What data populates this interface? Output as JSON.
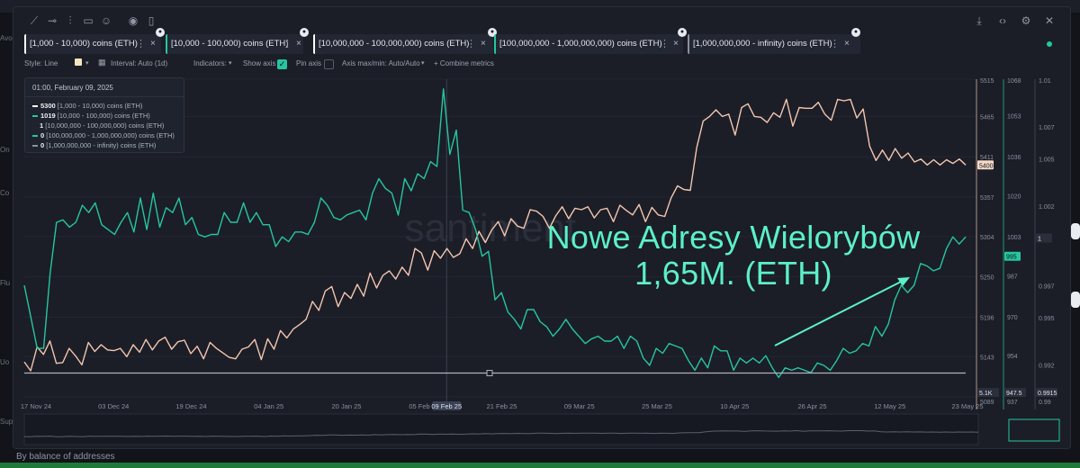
{
  "page": {
    "footer_text": "By balance of addresses",
    "left_rail_labels": [
      "Avo",
      "On",
      "Co",
      "Flu",
      "Uo",
      "Sup"
    ]
  },
  "toolbar": {
    "left_icons": [
      "line-tool-icon",
      "ray-tool-icon",
      "vertical-line-icon",
      "note-icon",
      "emoji-icon",
      "eye-icon",
      "trash-icon"
    ],
    "right_icons": [
      "download-icon",
      "embed-icon",
      "gear-icon",
      "close-icon"
    ]
  },
  "tabs": [
    {
      "label": "[1,000 - 10,000) coins (ETH)",
      "color": "#ffffff"
    },
    {
      "label": "[10,000 - 100,000) coins (ETH)",
      "color": "#26c6a0"
    },
    {
      "label": "[10,000,000 - 100,000,000) coins (ETH)",
      "color": "#ffffff"
    },
    {
      "label": "[100,000,000 - 1,000,000,000) coins (ETH)",
      "color": "#26c6a0"
    },
    {
      "label": "[1,000,000,000 - infinity) coins (ETH)",
      "color": "#8a90a0"
    }
  ],
  "settings": {
    "style": "Style: Line",
    "interval": "Interval: Auto (1d)",
    "indicators": "Indicators:",
    "show_axis": "Show axis",
    "pin_axis": "Pin axis",
    "axis_minmax": "Axis max/min: Auto/Auto",
    "combine": "+ Combine metrics"
  },
  "legend": {
    "date": "01:00, February 09, 2025",
    "rows": [
      {
        "value": "5300",
        "label": "[1,000 - 10,000) coins (ETH)",
        "color": "#ffffff"
      },
      {
        "value": "1019",
        "label": "[10,000 - 100,000) coins (ETH)",
        "color": "#26c6a0"
      },
      {
        "value": "1",
        "label": "[10,000,000 - 100,000,000) coins (ETH)",
        "color": "#ffffff"
      },
      {
        "value": "0",
        "label": "[100,000,000 - 1,000,000,000) coins (ETH)",
        "color": "#26c6a0"
      },
      {
        "value": "0",
        "label": "[1,000,000,000 - infinity) coins (ETH)",
        "color": "#8a90a0"
      }
    ]
  },
  "annotation": {
    "line1": "Nowe Adresy Wielorybów",
    "line2": "1,65M. (ETH)",
    "color": "#5cf0c8"
  },
  "watermark": "santiment",
  "chart_data": {
    "type": "line",
    "x_labels": [
      "17 Nov 24",
      "03 Dec 24",
      "19 Dec 24",
      "04 Jan 25",
      "20 Jan 25",
      "05 Feb 25",
      "21 Feb 25",
      "09 Mar 25",
      "25 Mar 25",
      "10 Apr 25",
      "26 Apr 25",
      "12 May 25",
      "23 May 25"
    ],
    "crosshair_label": "09 Feb 25",
    "axes": [
      {
        "name": "axis-1000-10000",
        "ticks": [
          5515,
          5465,
          5411,
          5357,
          5304,
          5250,
          5196,
          5143,
          5089
        ],
        "current": 5400,
        "min_label": "5.1K",
        "ylim": [
          5089,
          5515
        ]
      },
      {
        "name": "axis-10000-100000",
        "ticks": [
          1068,
          1053,
          1036,
          1020,
          1003,
          987,
          970,
          954,
          937
        ],
        "current": 995,
        "min_label": "947.5",
        "ylim": [
          937,
          1068
        ]
      },
      {
        "name": "axis-10000000-100000000",
        "ticks": [
          1.01,
          1.007,
          1.005,
          1.002,
          1,
          0.997,
          0.995,
          0.992,
          0.99
        ],
        "current": 1,
        "min_label": "0.9915",
        "ylim": [
          0.99,
          1.01
        ]
      }
    ],
    "series": [
      {
        "name": "[1,000 - 10,000) coins (ETH)",
        "color": "#f4c6b0",
        "values": [
          5136,
          5124,
          5156,
          5146,
          5164,
          5134,
          5135,
          5154,
          5144,
          5132,
          5162,
          5150,
          5159,
          5152,
          5151,
          5154,
          5143,
          5159,
          5149,
          5166,
          5152,
          5164,
          5169,
          5153,
          5163,
          5165,
          5147,
          5157,
          5140,
          5162,
          5154,
          5148,
          5142,
          5140,
          5153,
          5156,
          5166,
          5139,
          5167,
          5153,
          5178,
          5168,
          5180,
          5186,
          5193,
          5217,
          5205,
          5231,
          5237,
          5210,
          5229,
          5221,
          5240,
          5224,
          5255,
          5235,
          5252,
          5258,
          5247,
          5263,
          5252,
          5288,
          5282,
          5259,
          5285,
          5275,
          5288,
          5276,
          5281,
          5301,
          5288,
          5311,
          5296,
          5313,
          5324,
          5305,
          5328,
          5318,
          5315,
          5340,
          5338,
          5331,
          5315,
          5332,
          5344,
          5328,
          5342,
          5340,
          5344,
          5329,
          5340,
          5342,
          5324,
          5346,
          5339,
          5333,
          5347,
          5324,
          5343,
          5333,
          5331,
          5356,
          5372,
          5367,
          5366,
          5423,
          5459,
          5465,
          5474,
          5465,
          5468,
          5440,
          5477,
          5482,
          5465,
          5464,
          5457,
          5470,
          5464,
          5488,
          5452,
          5477,
          5476,
          5476,
          5484,
          5468,
          5460,
          5488,
          5486,
          5488,
          5463,
          5475,
          5425,
          5406,
          5420,
          5406,
          5422,
          5409,
          5416,
          5404,
          5408,
          5400,
          5407,
          5400,
          5407,
          5402,
          5408,
          5400
        ]
      },
      {
        "name": "[10,000 - 100,000) coins (ETH)",
        "color": "#26c6a0",
        "values": [
          983,
          970,
          957,
          957,
          988,
          1009,
          1010,
          1007,
          1009,
          1016,
          1013,
          1017,
          1008,
          1006,
          1004,
          1009,
          1013,
          1005,
          1019,
          1006,
          1021,
          1007,
          1015,
          1013,
          1019,
          1008,
          1011,
          1004,
          1003,
          1004,
          1004,
          1013,
          1009,
          1009,
          1017,
          1009,
          1013,
          1008,
          1008,
          999,
          1003,
          1001,
          1005,
          1005,
          1004,
          1009,
          1019,
          1016,
          1011,
          1010,
          1012,
          1013,
          1014,
          1010,
          1021,
          1027,
          1023,
          1021,
          1012,
          1027,
          1022,
          1029,
          1027,
          1034,
          1032,
          1064,
          1037,
          1047,
          1014,
          1013,
          1006,
          995,
          997,
          977,
          980,
          972,
          969,
          965,
          973,
          973,
          968,
          966,
          962,
          965,
          969,
          965,
          962,
          959,
          961,
          962,
          960,
          960,
          962,
          957,
          962,
          960,
          953,
          950,
          957,
          955,
          959,
          958,
          957,
          952,
          948,
          953,
          949,
          958,
          956,
          956,
          948,
          953,
          951,
          953,
          951,
          954,
          949,
          945,
          949,
          948,
          949,
          948,
          947,
          951,
          950,
          948,
          952,
          957,
          955,
          956,
          959,
          958,
          966,
          962,
          967,
          977,
          983,
          980,
          983,
          992,
          991,
          989,
          990,
          998,
          1003,
          1000,
          1003
        ]
      },
      {
        "name": "[10,000,000 - 100,000,000) coins (ETH)",
        "color": "#aeb3bf",
        "values": [
          0.9915,
          0.9915,
          0.9915,
          0.9915,
          0.9915,
          0.9915,
          0.9915,
          0.9915,
          0.9915,
          0.9915,
          0.9915,
          0.9915,
          0.9915
        ]
      }
    ]
  }
}
